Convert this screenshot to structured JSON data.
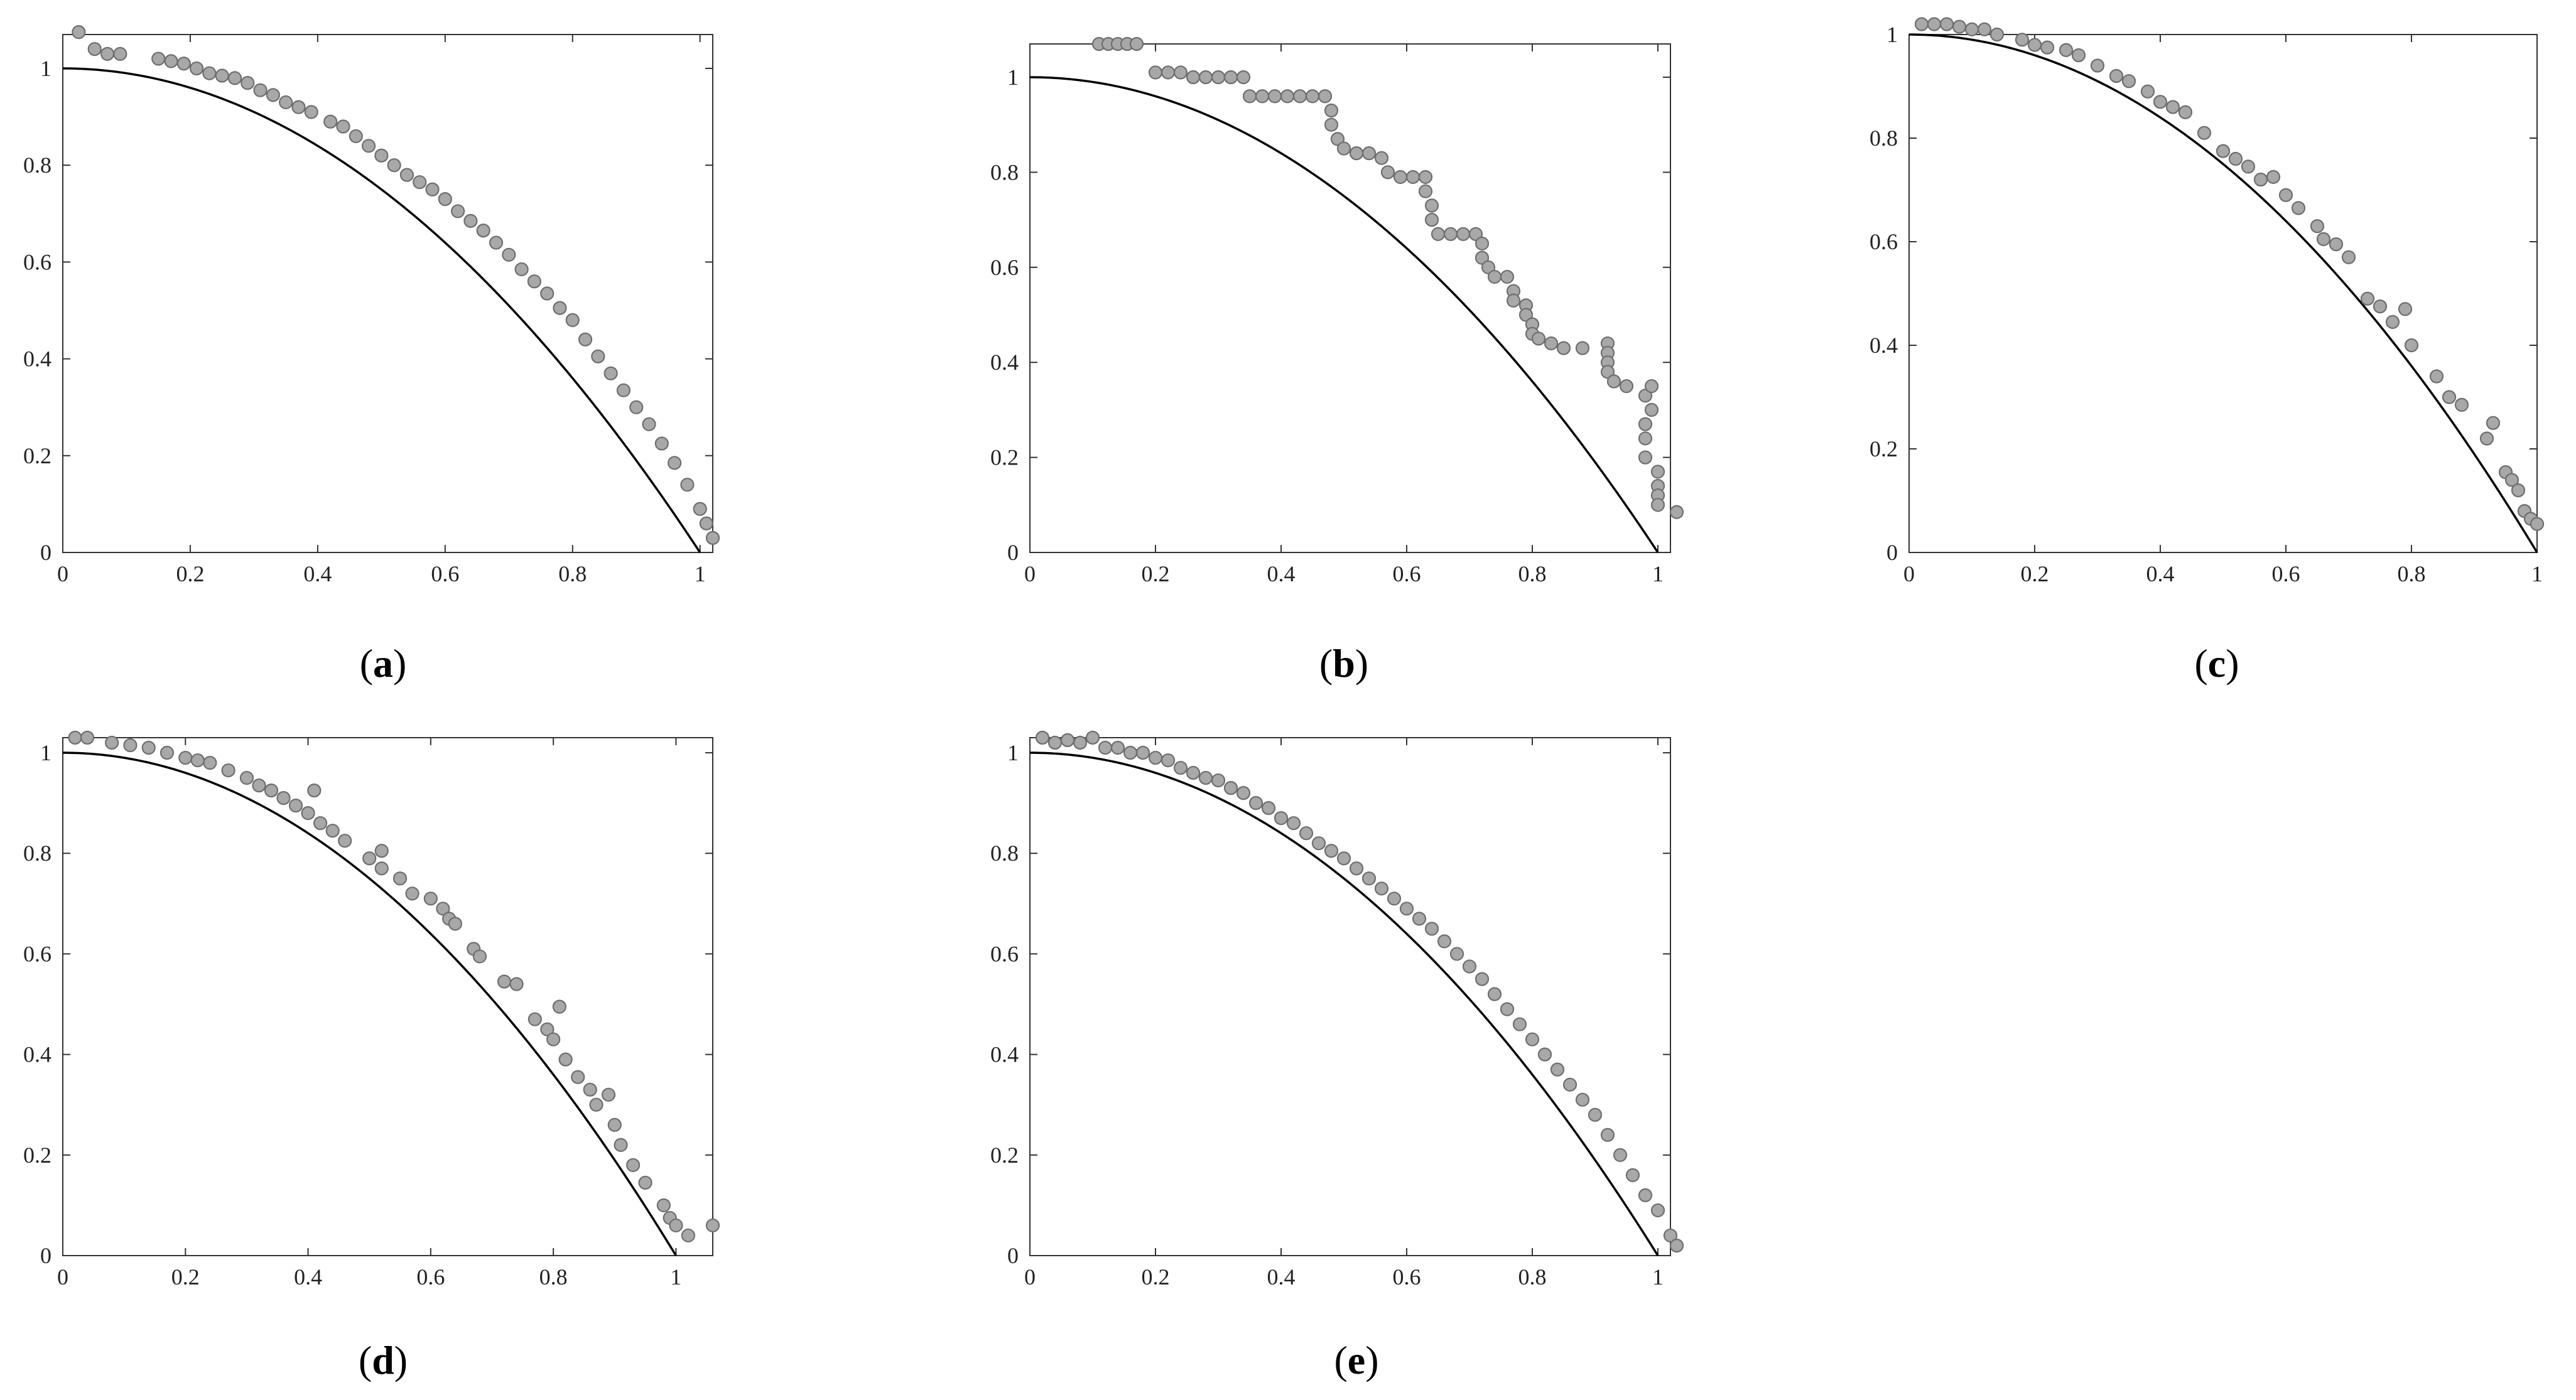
{
  "colors": {
    "marker_fill": "#a8a8a8",
    "marker_stroke": "#6e6e6e",
    "curve": "#000000",
    "axes": "#333333"
  },
  "chart_data": [
    {
      "type": "scatter",
      "caption": "a",
      "xlim": [
        0,
        1.02
      ],
      "ylim": [
        0,
        1.07
      ],
      "xticks": [
        "0",
        "0.2",
        "0.4",
        "0.6",
        "0.8",
        "1"
      ],
      "yticks": [
        "0",
        "0.2",
        "0.4",
        "0.6",
        "0.8",
        "1"
      ],
      "grid": false,
      "reference_curve": "y = 1 - x^2",
      "points": [
        [
          0.025,
          1.075
        ],
        [
          0.05,
          1.04
        ],
        [
          0.07,
          1.03
        ],
        [
          0.09,
          1.03
        ],
        [
          0.15,
          1.02
        ],
        [
          0.17,
          1.015
        ],
        [
          0.19,
          1.01
        ],
        [
          0.21,
          1.0
        ],
        [
          0.23,
          0.99
        ],
        [
          0.25,
          0.985
        ],
        [
          0.27,
          0.98
        ],
        [
          0.29,
          0.97
        ],
        [
          0.31,
          0.955
        ],
        [
          0.33,
          0.945
        ],
        [
          0.35,
          0.93
        ],
        [
          0.37,
          0.92
        ],
        [
          0.39,
          0.91
        ],
        [
          0.42,
          0.89
        ],
        [
          0.44,
          0.88
        ],
        [
          0.46,
          0.86
        ],
        [
          0.48,
          0.84
        ],
        [
          0.5,
          0.82
        ],
        [
          0.52,
          0.8
        ],
        [
          0.54,
          0.78
        ],
        [
          0.56,
          0.765
        ],
        [
          0.58,
          0.75
        ],
        [
          0.6,
          0.73
        ],
        [
          0.62,
          0.705
        ],
        [
          0.64,
          0.685
        ],
        [
          0.66,
          0.665
        ],
        [
          0.68,
          0.64
        ],
        [
          0.7,
          0.615
        ],
        [
          0.72,
          0.585
        ],
        [
          0.74,
          0.56
        ],
        [
          0.76,
          0.535
        ],
        [
          0.78,
          0.505
        ],
        [
          0.8,
          0.48
        ],
        [
          0.82,
          0.44
        ],
        [
          0.84,
          0.405
        ],
        [
          0.86,
          0.37
        ],
        [
          0.88,
          0.335
        ],
        [
          0.9,
          0.3
        ],
        [
          0.92,
          0.265
        ],
        [
          0.94,
          0.225
        ],
        [
          0.96,
          0.185
        ],
        [
          0.98,
          0.14
        ],
        [
          1.0,
          0.09
        ],
        [
          1.01,
          0.06
        ],
        [
          1.02,
          0.03
        ]
      ]
    },
    {
      "type": "scatter",
      "caption": "b",
      "xlim": [
        0,
        1.02
      ],
      "ylim": [
        0,
        1.07
      ],
      "xticks": [
        "0",
        "0.2",
        "0.4",
        "0.6",
        "0.8",
        "1"
      ],
      "yticks": [
        "0",
        "0.2",
        "0.4",
        "0.6",
        "0.8",
        "1"
      ],
      "grid": false,
      "reference_curve": "y = 1 - x^2",
      "points": [
        [
          0.11,
          1.07
        ],
        [
          0.125,
          1.07
        ],
        [
          0.14,
          1.07
        ],
        [
          0.155,
          1.07
        ],
        [
          0.17,
          1.07
        ],
        [
          0.2,
          1.01
        ],
        [
          0.22,
          1.01
        ],
        [
          0.24,
          1.01
        ],
        [
          0.26,
          1.0
        ],
        [
          0.28,
          1.0
        ],
        [
          0.3,
          1.0
        ],
        [
          0.32,
          1.0
        ],
        [
          0.34,
          1.0
        ],
        [
          0.35,
          0.96
        ],
        [
          0.37,
          0.96
        ],
        [
          0.39,
          0.96
        ],
        [
          0.41,
          0.96
        ],
        [
          0.43,
          0.96
        ],
        [
          0.45,
          0.96
        ],
        [
          0.47,
          0.96
        ],
        [
          0.48,
          0.93
        ],
        [
          0.48,
          0.9
        ],
        [
          0.49,
          0.87
        ],
        [
          0.5,
          0.85
        ],
        [
          0.52,
          0.84
        ],
        [
          0.54,
          0.84
        ],
        [
          0.56,
          0.83
        ],
        [
          0.57,
          0.8
        ],
        [
          0.59,
          0.79
        ],
        [
          0.61,
          0.79
        ],
        [
          0.63,
          0.79
        ],
        [
          0.63,
          0.76
        ],
        [
          0.64,
          0.73
        ],
        [
          0.64,
          0.7
        ],
        [
          0.65,
          0.67
        ],
        [
          0.67,
          0.67
        ],
        [
          0.69,
          0.67
        ],
        [
          0.71,
          0.67
        ],
        [
          0.72,
          0.65
        ],
        [
          0.72,
          0.62
        ],
        [
          0.73,
          0.6
        ],
        [
          0.74,
          0.58
        ],
        [
          0.76,
          0.58
        ],
        [
          0.77,
          0.55
        ],
        [
          0.77,
          0.53
        ],
        [
          0.79,
          0.52
        ],
        [
          0.79,
          0.5
        ],
        [
          0.8,
          0.48
        ],
        [
          0.8,
          0.46
        ],
        [
          0.81,
          0.45
        ],
        [
          0.83,
          0.44
        ],
        [
          0.85,
          0.43
        ],
        [
          0.88,
          0.43
        ],
        [
          0.92,
          0.44
        ],
        [
          0.92,
          0.42
        ],
        [
          0.92,
          0.4
        ],
        [
          0.92,
          0.38
        ],
        [
          0.93,
          0.36
        ],
        [
          0.95,
          0.35
        ],
        [
          0.98,
          0.33
        ],
        [
          0.99,
          0.35
        ],
        [
          0.99,
          0.3
        ],
        [
          0.98,
          0.27
        ],
        [
          0.98,
          0.24
        ],
        [
          0.98,
          0.2
        ],
        [
          1.0,
          0.17
        ],
        [
          1.0,
          0.14
        ],
        [
          1.0,
          0.12
        ],
        [
          1.0,
          0.1
        ],
        [
          1.03,
          0.085
        ]
      ]
    },
    {
      "type": "scatter",
      "caption": "c",
      "xlim": [
        0,
        1.0
      ],
      "ylim": [
        0,
        1.0
      ],
      "xticks": [
        "0",
        "0.2",
        "0.4",
        "0.6",
        "0.8",
        "1"
      ],
      "yticks": [
        "0",
        "0.2",
        "0.4",
        "0.6",
        "0.8",
        "1"
      ],
      "grid": false,
      "reference_curve": "y = 1 - x^2",
      "points": [
        [
          0.02,
          1.02
        ],
        [
          0.04,
          1.02
        ],
        [
          0.06,
          1.02
        ],
        [
          0.08,
          1.015
        ],
        [
          0.1,
          1.01
        ],
        [
          0.12,
          1.01
        ],
        [
          0.14,
          1.0
        ],
        [
          0.18,
          0.99
        ],
        [
          0.2,
          0.98
        ],
        [
          0.22,
          0.975
        ],
        [
          0.25,
          0.97
        ],
        [
          0.27,
          0.96
        ],
        [
          0.3,
          0.94
        ],
        [
          0.33,
          0.92
        ],
        [
          0.35,
          0.91
        ],
        [
          0.38,
          0.89
        ],
        [
          0.4,
          0.87
        ],
        [
          0.42,
          0.86
        ],
        [
          0.44,
          0.85
        ],
        [
          0.47,
          0.81
        ],
        [
          0.5,
          0.775
        ],
        [
          0.52,
          0.76
        ],
        [
          0.54,
          0.745
        ],
        [
          0.56,
          0.72
        ],
        [
          0.58,
          0.725
        ],
        [
          0.6,
          0.69
        ],
        [
          0.62,
          0.665
        ],
        [
          0.65,
          0.63
        ],
        [
          0.66,
          0.605
        ],
        [
          0.68,
          0.595
        ],
        [
          0.7,
          0.57
        ],
        [
          0.73,
          0.49
        ],
        [
          0.75,
          0.475
        ],
        [
          0.77,
          0.445
        ],
        [
          0.79,
          0.47
        ],
        [
          0.8,
          0.4
        ],
        [
          0.84,
          0.34
        ],
        [
          0.86,
          0.3
        ],
        [
          0.88,
          0.285
        ],
        [
          0.92,
          0.22
        ],
        [
          0.93,
          0.25
        ],
        [
          0.95,
          0.155
        ],
        [
          0.96,
          0.14
        ],
        [
          0.97,
          0.12
        ],
        [
          0.98,
          0.08
        ],
        [
          0.99,
          0.065
        ],
        [
          1.0,
          0.055
        ]
      ]
    },
    {
      "type": "scatter",
      "caption": "d",
      "xlim": [
        0,
        1.06
      ],
      "ylim": [
        0,
        1.03
      ],
      "xticks": [
        "0",
        "0.2",
        "0.4",
        "0.6",
        "0.8",
        "1"
      ],
      "yticks": [
        "0",
        "0.2",
        "0.4",
        "0.6",
        "0.8",
        "1"
      ],
      "grid": false,
      "reference_curve": "y = 1 - x^2",
      "points": [
        [
          0.02,
          1.03
        ],
        [
          0.04,
          1.03
        ],
        [
          0.08,
          1.02
        ],
        [
          0.11,
          1.015
        ],
        [
          0.14,
          1.01
        ],
        [
          0.17,
          1.0
        ],
        [
          0.2,
          0.99
        ],
        [
          0.22,
          0.985
        ],
        [
          0.24,
          0.98
        ],
        [
          0.27,
          0.965
        ],
        [
          0.3,
          0.95
        ],
        [
          0.32,
          0.935
        ],
        [
          0.34,
          0.925
        ],
        [
          0.36,
          0.91
        ],
        [
          0.38,
          0.895
        ],
        [
          0.4,
          0.88
        ],
        [
          0.41,
          0.925
        ],
        [
          0.42,
          0.86
        ],
        [
          0.44,
          0.845
        ],
        [
          0.46,
          0.825
        ],
        [
          0.5,
          0.79
        ],
        [
          0.52,
          0.805
        ],
        [
          0.52,
          0.77
        ],
        [
          0.55,
          0.75
        ],
        [
          0.57,
          0.72
        ],
        [
          0.6,
          0.71
        ],
        [
          0.62,
          0.69
        ],
        [
          0.63,
          0.67
        ],
        [
          0.64,
          0.66
        ],
        [
          0.67,
          0.61
        ],
        [
          0.68,
          0.595
        ],
        [
          0.72,
          0.545
        ],
        [
          0.74,
          0.54
        ],
        [
          0.77,
          0.47
        ],
        [
          0.79,
          0.45
        ],
        [
          0.8,
          0.43
        ],
        [
          0.81,
          0.495
        ],
        [
          0.82,
          0.39
        ],
        [
          0.84,
          0.355
        ],
        [
          0.86,
          0.33
        ],
        [
          0.87,
          0.3
        ],
        [
          0.89,
          0.32
        ],
        [
          0.9,
          0.26
        ],
        [
          0.91,
          0.22
        ],
        [
          0.93,
          0.18
        ],
        [
          0.95,
          0.145
        ],
        [
          0.98,
          0.1
        ],
        [
          0.99,
          0.075
        ],
        [
          1.0,
          0.06
        ],
        [
          1.02,
          0.04
        ],
        [
          1.06,
          0.06
        ]
      ]
    },
    {
      "type": "scatter",
      "caption": "e",
      "xlim": [
        0,
        1.02
      ],
      "ylim": [
        0,
        1.03
      ],
      "xticks": [
        "0",
        "0.2",
        "0.4",
        "0.6",
        "0.8",
        "1"
      ],
      "yticks": [
        "0",
        "0.2",
        "0.4",
        "0.6",
        "0.8",
        "1"
      ],
      "grid": false,
      "reference_curve": "y = 1 - x^2",
      "points": [
        [
          0.02,
          1.03
        ],
        [
          0.04,
          1.02
        ],
        [
          0.06,
          1.025
        ],
        [
          0.08,
          1.02
        ],
        [
          0.1,
          1.03
        ],
        [
          0.12,
          1.01
        ],
        [
          0.14,
          1.01
        ],
        [
          0.16,
          1.0
        ],
        [
          0.18,
          1.0
        ],
        [
          0.2,
          0.99
        ],
        [
          0.22,
          0.985
        ],
        [
          0.24,
          0.97
        ],
        [
          0.26,
          0.96
        ],
        [
          0.28,
          0.95
        ],
        [
          0.3,
          0.945
        ],
        [
          0.32,
          0.93
        ],
        [
          0.34,
          0.92
        ],
        [
          0.36,
          0.9
        ],
        [
          0.38,
          0.89
        ],
        [
          0.4,
          0.87
        ],
        [
          0.42,
          0.86
        ],
        [
          0.44,
          0.84
        ],
        [
          0.46,
          0.82
        ],
        [
          0.48,
          0.805
        ],
        [
          0.5,
          0.79
        ],
        [
          0.52,
          0.77
        ],
        [
          0.54,
          0.75
        ],
        [
          0.56,
          0.73
        ],
        [
          0.58,
          0.71
        ],
        [
          0.6,
          0.69
        ],
        [
          0.62,
          0.67
        ],
        [
          0.64,
          0.65
        ],
        [
          0.66,
          0.625
        ],
        [
          0.68,
          0.6
        ],
        [
          0.7,
          0.575
        ],
        [
          0.72,
          0.55
        ],
        [
          0.74,
          0.52
        ],
        [
          0.76,
          0.49
        ],
        [
          0.78,
          0.46
        ],
        [
          0.8,
          0.43
        ],
        [
          0.82,
          0.4
        ],
        [
          0.84,
          0.37
        ],
        [
          0.86,
          0.34
        ],
        [
          0.88,
          0.31
        ],
        [
          0.9,
          0.28
        ],
        [
          0.92,
          0.24
        ],
        [
          0.94,
          0.2
        ],
        [
          0.96,
          0.16
        ],
        [
          0.98,
          0.12
        ],
        [
          1.0,
          0.09
        ],
        [
          1.02,
          0.04
        ],
        [
          1.03,
          0.02
        ]
      ]
    }
  ]
}
